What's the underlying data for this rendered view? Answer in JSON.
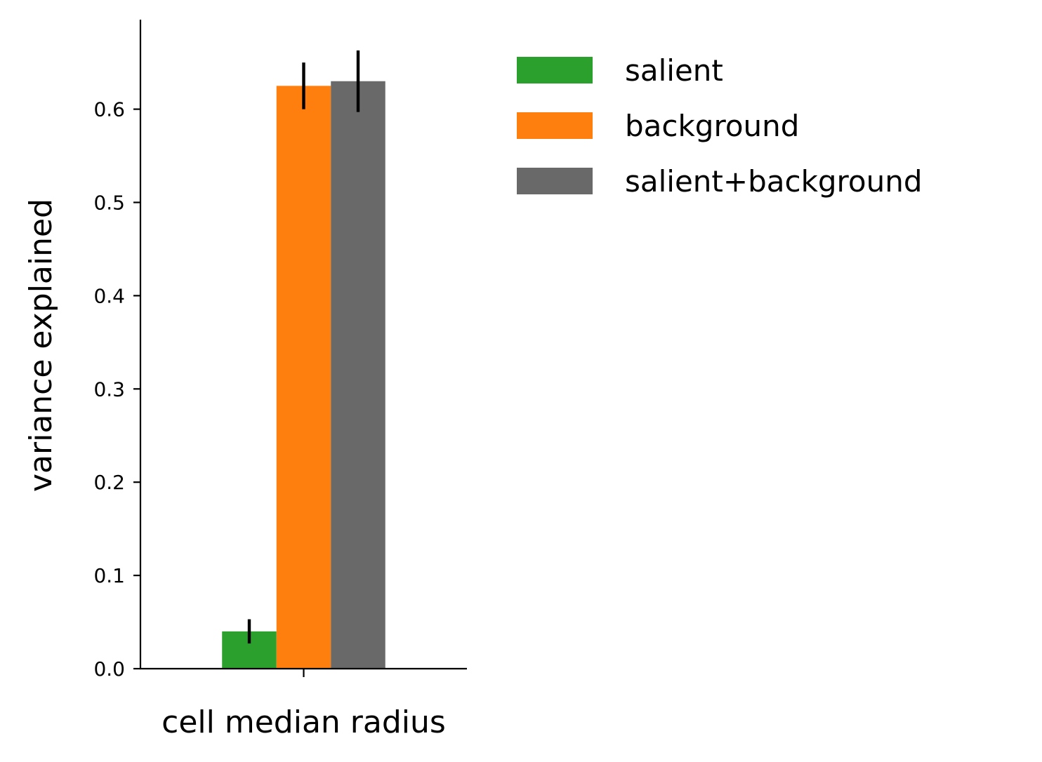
{
  "chart_data": {
    "type": "bar",
    "categories": [
      "cell median radius"
    ],
    "series": [
      {
        "name": "salient",
        "values": [
          0.04
        ],
        "errors": [
          0.013
        ],
        "color": "#2ca02c"
      },
      {
        "name": "background",
        "values": [
          0.625
        ],
        "errors": [
          0.025
        ],
        "color": "#ff7f0e"
      },
      {
        "name": "salient+background",
        "values": [
          0.63
        ],
        "errors": [
          0.033
        ],
        "color": "#696969"
      }
    ],
    "title": "",
    "xlabel": "",
    "ylabel": "variance explained",
    "ylim": [
      0,
      0.696
    ],
    "yticks": [
      0.0,
      0.1,
      0.2,
      0.3,
      0.4,
      0.5,
      0.6
    ],
    "ytick_labels": [
      "0.0",
      "0.1",
      "0.2",
      "0.3",
      "0.4",
      "0.5",
      "0.6"
    ],
    "grid": false,
    "legend_position": "top-right"
  }
}
